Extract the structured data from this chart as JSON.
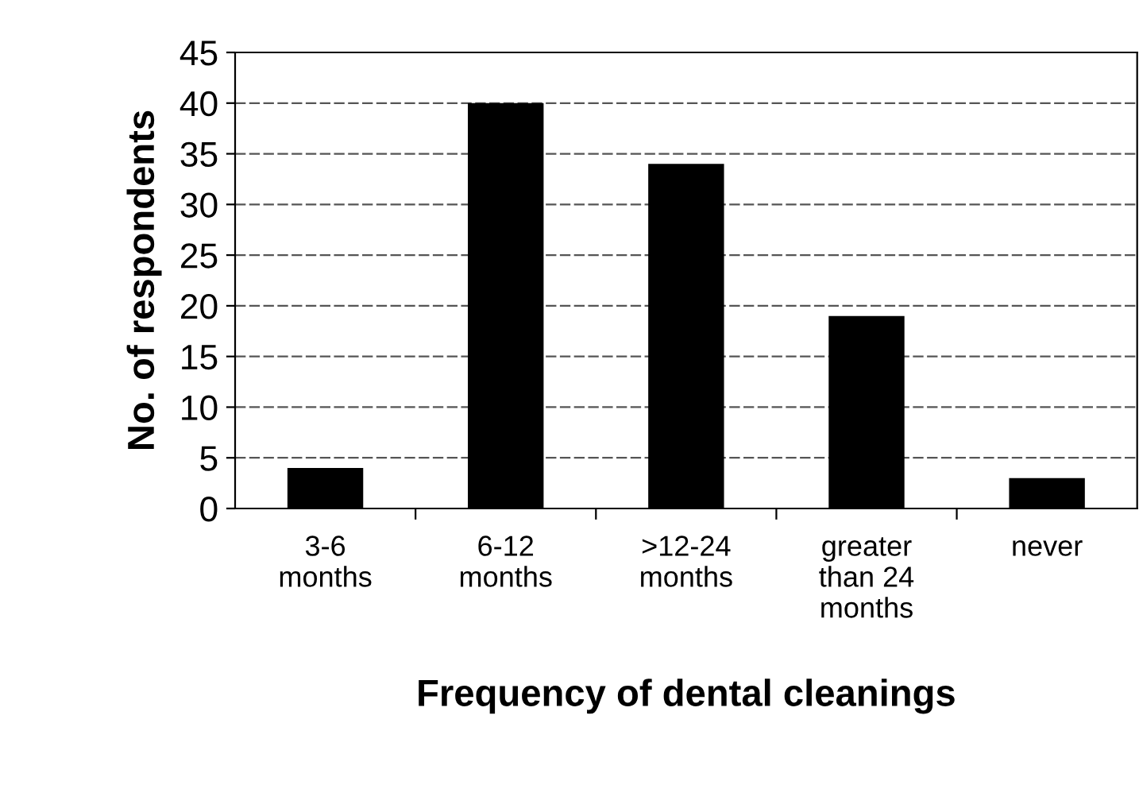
{
  "chart_data": {
    "type": "bar",
    "xlabel": "Frequency of dental cleanings",
    "ylabel": "No. of respondents",
    "categories": [
      "3-6\nmonths",
      "6-12\nmonths",
      ">12-24\nmonths",
      "greater\nthan 24\nmonths",
      "never"
    ],
    "values": [
      4,
      40,
      34,
      19,
      3
    ],
    "color": "#000000",
    "ylim": [
      0,
      45
    ],
    "yticks": [
      0,
      5,
      10,
      15,
      20,
      25,
      30,
      35,
      40,
      45
    ],
    "grid": "y",
    "legend": false
  }
}
